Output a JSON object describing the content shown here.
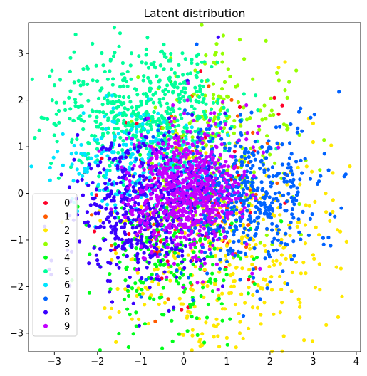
{
  "chart_data": {
    "type": "scatter",
    "title": "Latent distribution",
    "xlabel": "",
    "ylabel": "",
    "xlim": [
      -3.6,
      4.1
    ],
    "ylim": [
      -3.4,
      3.66
    ],
    "xticks": [
      -3,
      -2,
      -1,
      0,
      1,
      2,
      3,
      4
    ],
    "yticks": [
      -3,
      -2,
      -1,
      0,
      1,
      2,
      3
    ],
    "grid": false,
    "legend_position": "lower-left",
    "series": [
      {
        "name": "0",
        "color": "#ff0029",
        "center": [
          0.2,
          -0.1
        ],
        "spread": [
          0.9,
          1.0
        ],
        "count": 70,
        "seed": 11,
        "points": [
          [
            2.1,
            2.05
          ],
          [
            2.2,
            1.7
          ],
          [
            1.3,
            1.85
          ],
          [
            -1.9,
            0.75
          ],
          [
            0.1,
            -2.45
          ],
          [
            -0.05,
            -2.5
          ],
          [
            -2.3,
            0.45
          ],
          [
            1.5,
            -1.85
          ],
          [
            0.5,
            1.2
          ],
          [
            1.1,
            0.3
          ]
        ]
      },
      {
        "name": "1",
        "color": "#ff5a00",
        "center": [
          0.3,
          -0.2
        ],
        "spread": [
          0.9,
          1.0
        ],
        "count": 60,
        "seed": 23,
        "points": [
          [
            1.6,
            1.3
          ],
          [
            0.9,
            -0.6
          ],
          [
            -0.5,
            -1.0
          ],
          [
            0.2,
            0.9
          ],
          [
            1.2,
            -1.3
          ],
          [
            -0.8,
            0.5
          ]
        ]
      },
      {
        "name": "2",
        "color": "#ffe800",
        "center": [
          0.9,
          -1.1
        ],
        "spread": [
          1.2,
          1.2
        ],
        "count": 380,
        "seed": 37,
        "points": [
          [
            3.85,
            0.58
          ],
          [
            3.0,
            1.1
          ],
          [
            2.9,
            1.6
          ],
          [
            2.2,
            2.7
          ],
          [
            2.35,
            2.82
          ],
          [
            1.0,
            -3.1
          ],
          [
            1.3,
            -3.0
          ],
          [
            0.2,
            -3.05
          ],
          [
            -1.5,
            -2.55
          ],
          [
            -1.2,
            -2.7
          ],
          [
            2.5,
            -2.1
          ],
          [
            3.3,
            -0.4
          ],
          [
            3.0,
            1.5
          ],
          [
            1.5,
            -2.9
          ]
        ]
      },
      {
        "name": "3",
        "color": "#95ff00",
        "center": [
          0.9,
          1.2
        ],
        "spread": [
          0.9,
          0.9
        ],
        "count": 220,
        "seed": 41,
        "points": [
          [
            1.3,
            3.3
          ],
          [
            0.9,
            3.0
          ],
          [
            2.4,
            2.05
          ],
          [
            1.6,
            2.45
          ],
          [
            -0.3,
            2.9
          ],
          [
            1.9,
            1.6
          ]
        ]
      },
      {
        "name": "4",
        "color": "#00ff1a",
        "center": [
          -0.2,
          -1.4
        ],
        "spread": [
          0.9,
          0.9
        ],
        "count": 260,
        "seed": 53,
        "points": [
          [
            -1.1,
            -2.85
          ],
          [
            -0.9,
            -2.8
          ],
          [
            -1.7,
            -2.05
          ],
          [
            -0.5,
            -2.6
          ],
          [
            0.4,
            -2.2
          ],
          [
            -0.3,
            2.4
          ],
          [
            -1.25,
            -2.6
          ]
        ]
      },
      {
        "name": "5",
        "color": "#00ff9a",
        "center": [
          -0.9,
          1.7
        ],
        "spread": [
          1.0,
          0.7
        ],
        "count": 560,
        "seed": 61,
        "points": [
          [
            -1.5,
            3.15
          ],
          [
            -1.6,
            3.02
          ],
          [
            -3.05,
            2.0
          ],
          [
            -3.35,
            1.35
          ],
          [
            -2.95,
            1.7
          ],
          [
            0.3,
            2.95
          ],
          [
            -0.3,
            2.85
          ],
          [
            -2.4,
            0.7
          ],
          [
            -2.6,
            1.1
          ],
          [
            0.1,
            2.4
          ]
        ]
      },
      {
        "name": "6",
        "color": "#00e5ff",
        "center": [
          -1.2,
          0.5
        ],
        "spread": [
          0.8,
          0.6
        ],
        "count": 220,
        "seed": 67,
        "points": [
          [
            -3.1,
            0.55
          ],
          [
            -2.8,
            0.6
          ],
          [
            -3.1,
            0.28
          ],
          [
            -2.3,
            0.85
          ],
          [
            -1.8,
            0.4
          ],
          [
            -2.0,
            1.15
          ]
        ]
      },
      {
        "name": "7",
        "color": "#0062ff",
        "center": [
          1.3,
          -0.1
        ],
        "spread": [
          0.9,
          0.8
        ],
        "count": 520,
        "seed": 71,
        "points": [
          [
            3.6,
            2.18
          ],
          [
            0.3,
            3.2
          ],
          [
            2.5,
            0.85
          ],
          [
            3.5,
            -0.5
          ],
          [
            2.9,
            -0.9
          ],
          [
            2.0,
            -1.9
          ],
          [
            1.7,
            -2.1
          ],
          [
            2.4,
            -1.1
          ],
          [
            3.1,
            0.2
          ]
        ]
      },
      {
        "name": "8",
        "color": "#3a00ff",
        "center": [
          -1.0,
          -0.3
        ],
        "spread": [
          0.8,
          0.8
        ],
        "count": 480,
        "seed": 83,
        "points": [
          [
            -2.6,
            -1.25
          ],
          [
            -2.2,
            -1.5
          ],
          [
            -1.9,
            -0.3
          ],
          [
            -1.7,
            -1.5
          ],
          [
            -1.9,
            0.95
          ],
          [
            -2.2,
            -0.7
          ],
          [
            -1.5,
            -1.6
          ],
          [
            0.8,
            3.35
          ]
        ]
      },
      {
        "name": "9",
        "color": "#c300ff",
        "center": [
          0.05,
          0.05
        ],
        "spread": [
          0.7,
          0.7
        ],
        "count": 650,
        "seed": 97,
        "points": [
          [
            -0.9,
            -1.4
          ],
          [
            0.6,
            -1.2
          ],
          [
            0.2,
            1.05
          ],
          [
            -1.4,
            -0.2
          ],
          [
            1.4,
            0.4
          ],
          [
            -0.4,
            -1.8
          ]
        ]
      }
    ]
  }
}
